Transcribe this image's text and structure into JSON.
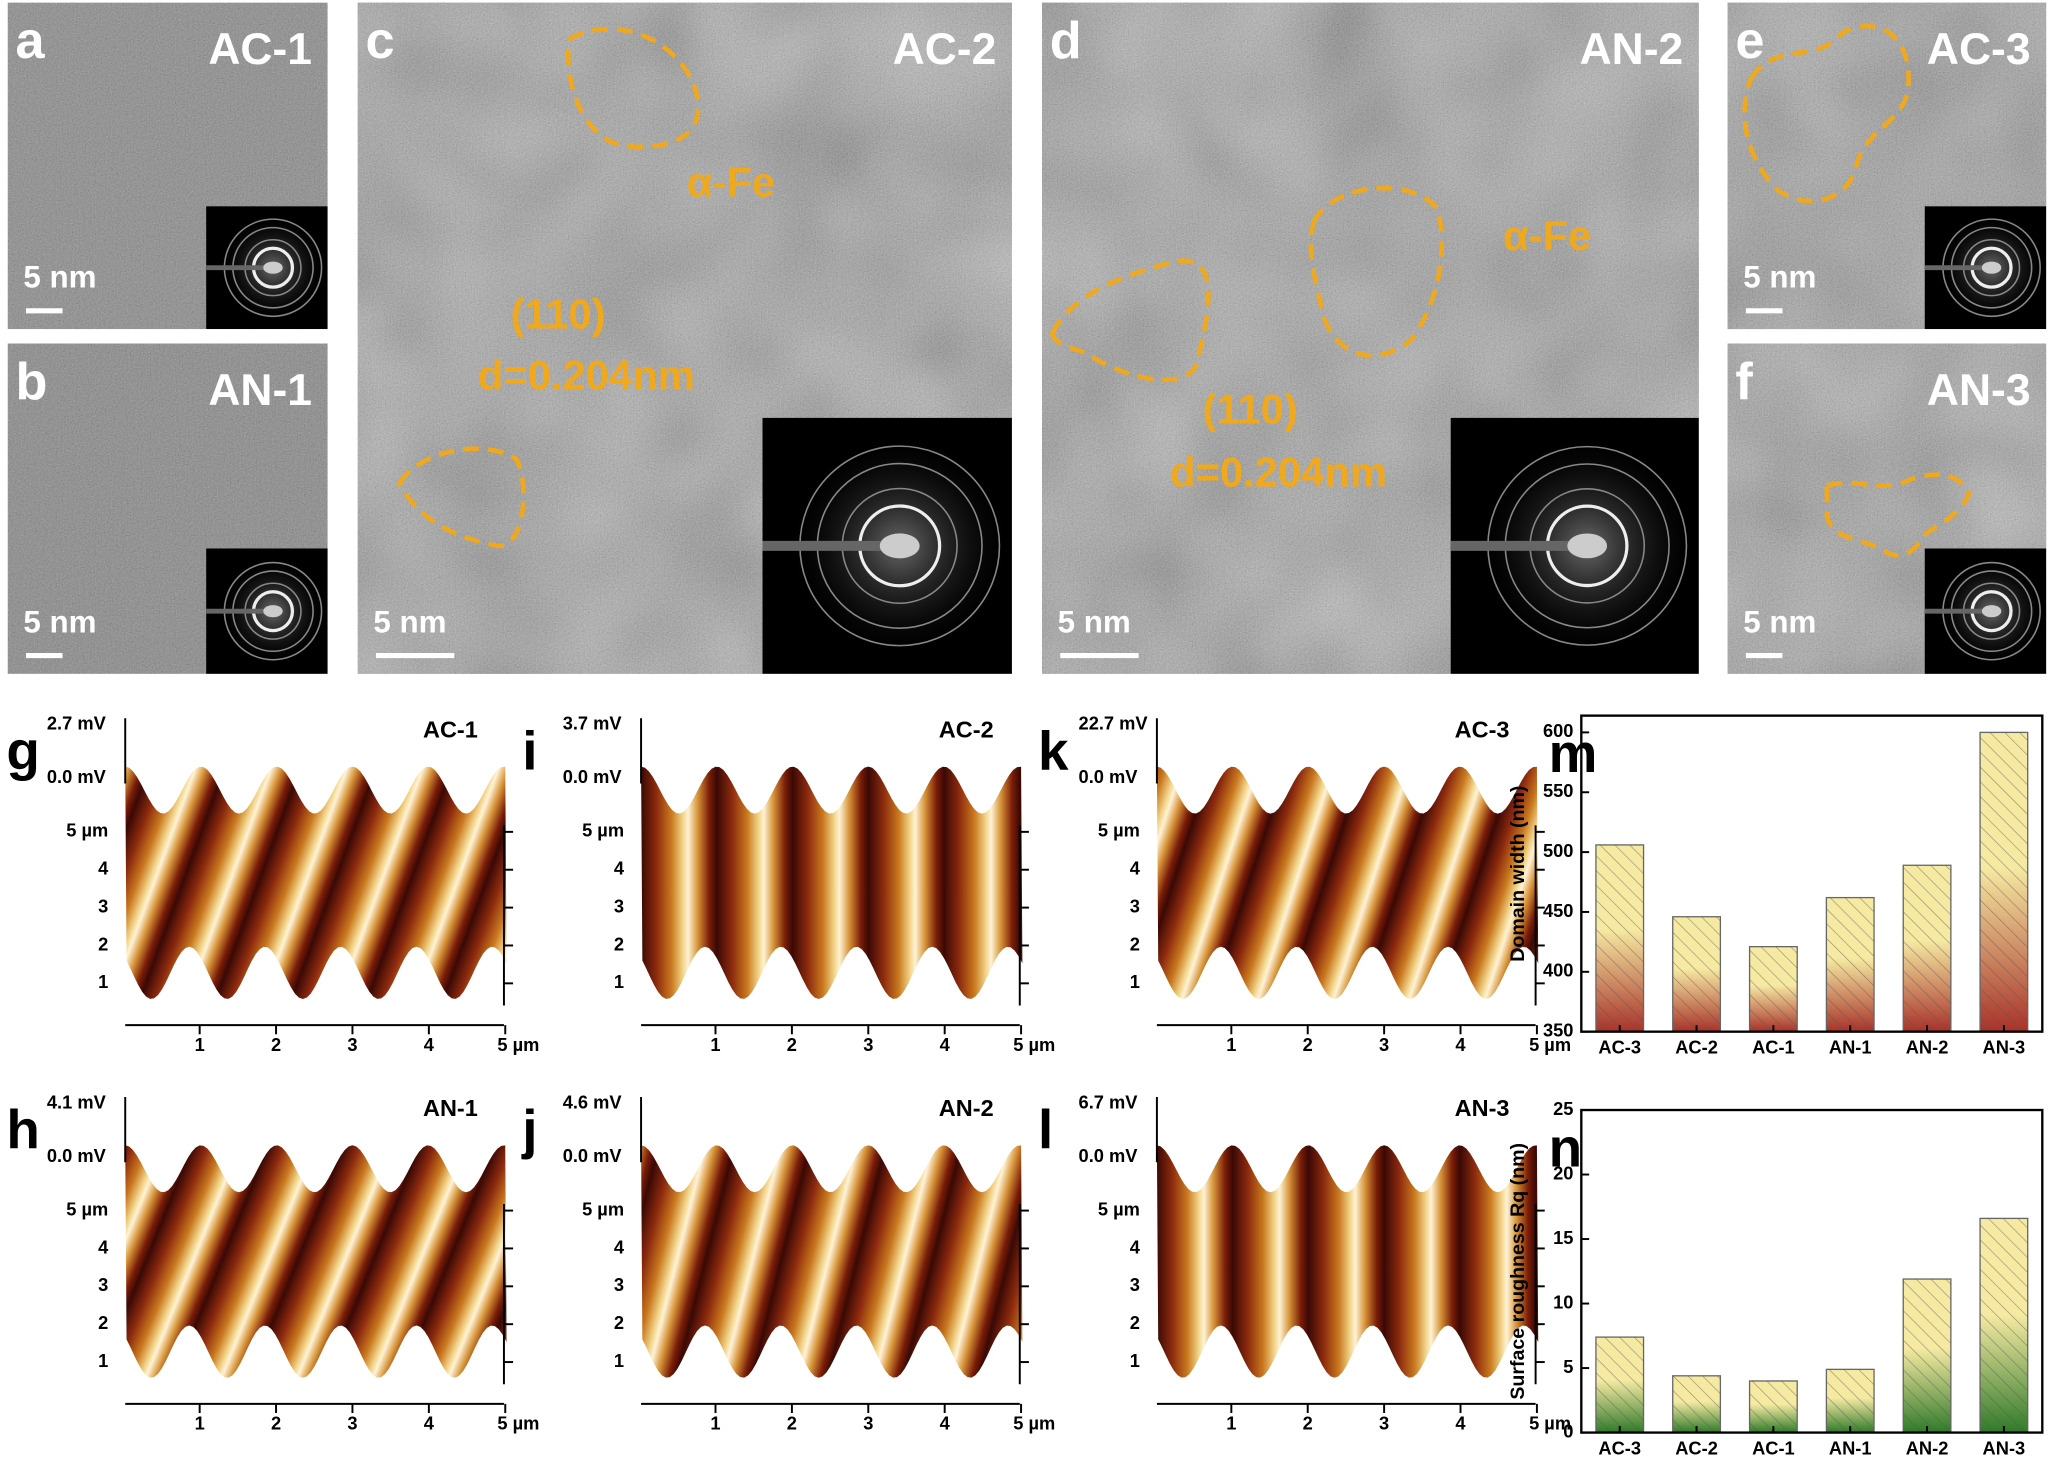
{
  "tem_panels": [
    {
      "letter": "a",
      "label": "AC-1",
      "scale_bar": "5 nm"
    },
    {
      "letter": "b",
      "label": "AN-1",
      "scale_bar": "5 nm"
    },
    {
      "letter": "c",
      "label": "AC-2",
      "scale_bar": "5 nm",
      "phase": "α-Fe",
      "plane": "(110)",
      "spacing": "d=0.204nm"
    },
    {
      "letter": "d",
      "label": "AN-2",
      "scale_bar": "5 nm",
      "phase": "α-Fe",
      "plane": "(110)",
      "spacing": "d=0.204nm"
    },
    {
      "letter": "e",
      "label": "AC-3",
      "scale_bar": "5 nm"
    },
    {
      "letter": "f",
      "label": "AN-3",
      "scale_bar": "5 nm"
    }
  ],
  "afm_panels": [
    {
      "letter": "g",
      "label": "AC-1",
      "z_max": "2.7 mV",
      "z_min": "0.0 mV"
    },
    {
      "letter": "i",
      "label": "AC-2",
      "z_max": "3.7 mV",
      "z_min": "0.0 mV"
    },
    {
      "letter": "k",
      "label": "AC-3",
      "z_max": "22.7 mV",
      "z_min": "0.0 mV"
    },
    {
      "letter": "h",
      "label": "AN-1",
      "z_max": "4.1 mV",
      "z_min": "0.0 mV"
    },
    {
      "letter": "j",
      "label": "AN-2",
      "z_max": "4.6 mV",
      "z_min": "0.0 mV"
    },
    {
      "letter": "l",
      "label": "AN-3",
      "z_max": "6.7 mV",
      "z_min": "0.0 mV"
    }
  ],
  "afm_axes": {
    "y_ticks": [
      "5 µm",
      "4",
      "3",
      "2",
      "1"
    ],
    "x_ticks": [
      "1",
      "2",
      "3",
      "4",
      "5 µm"
    ]
  },
  "chart_data": [
    {
      "type": "bar",
      "letter": "m",
      "ylabel": "Domain width (nm)",
      "categories": [
        "AC-3",
        "AC-2",
        "AC-1",
        "AN-1",
        "AN-2",
        "AN-3"
      ],
      "values": [
        506,
        446,
        421,
        462,
        489,
        600
      ],
      "color_top": "#f6eaa2",
      "color_bottom": "#a8322a",
      "ylim": [
        350,
        614
      ],
      "yticks": [
        350,
        400,
        450,
        500,
        550,
        600
      ]
    },
    {
      "type": "bar",
      "letter": "n",
      "ylabel": "Surface roughness Rq (nm)",
      "categories": [
        "AC-3",
        "AC-2",
        "AC-1",
        "AN-1",
        "AN-2",
        "AN-3"
      ],
      "values": [
        7.4,
        4.4,
        4.0,
        4.9,
        11.9,
        16.6
      ],
      "color_top": "#f6eaa2",
      "color_bottom": "#2f7a2a",
      "ylim": [
        0,
        25
      ],
      "yticks": [
        0,
        5,
        10,
        15,
        20,
        25
      ]
    }
  ]
}
